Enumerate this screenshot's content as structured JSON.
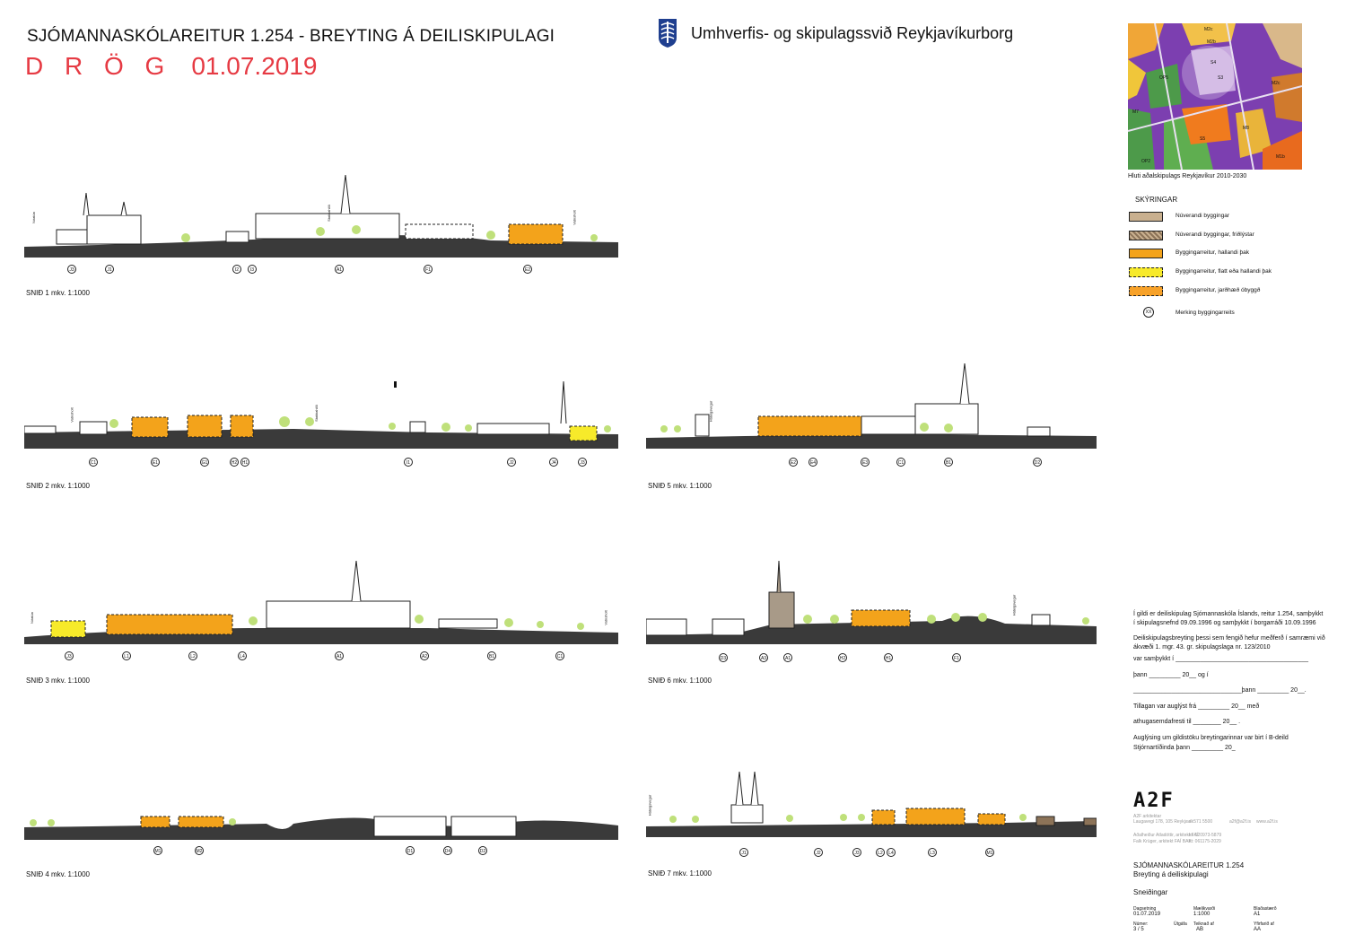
{
  "header": {
    "title": "SJÓMANNASKÓLAREITUR  1.254 - BREYTING Á DEILISKIPULAGI",
    "draft_word": "D R Ö G",
    "draft_date": "01.07.2019",
    "org_name": "Umhverfis- og skipulagssvið Reykjavíkurborg"
  },
  "map": {
    "caption": "Hluti aðalskipulags Reykjavíkur 2010-2030",
    "labels": [
      "M2c",
      "M2b",
      "S4",
      "OP5",
      "M7",
      "M2c",
      "S3",
      "S5",
      "M8",
      "M1b",
      "OP2"
    ]
  },
  "legend": {
    "title": "SKÝRINGAR",
    "items": [
      {
        "label": "Núverandi byggingar",
        "color": "#c9b08f"
      },
      {
        "label": "Núverandi byggingar, friðlýstar",
        "color": "#8c7358"
      },
      {
        "label": "Byggingarreitur, hallandi þak",
        "color": "#f3a31b"
      },
      {
        "label": "Byggingarreitur, flatt eða hallandi þak",
        "color": "#f7ea2a"
      },
      {
        "label": "Byggingarreitur, jarðhæð óbyggð",
        "color": "#f7a128"
      }
    ],
    "marker_symbol": "XX",
    "marker_label": "Merking byggingarreits"
  },
  "sections": [
    {
      "label": "SNIÐ 1 mkv. 1:1000",
      "refs": [
        "J3",
        "J1",
        "I2",
        "I3",
        "A1",
        "F1",
        "E2"
      ]
    },
    {
      "label": "SNIÐ 2 mkv. 1:1000",
      "refs": [
        "C1",
        "E1",
        "G1",
        "H2",
        "H1",
        "I1",
        "J2",
        "J4",
        "J3"
      ]
    },
    {
      "label": "SNIÐ 3 mkv. 1:1000",
      "refs": [
        "J3",
        "L1",
        "L2",
        "L4",
        "A1",
        "A2",
        "B1",
        "C1"
      ]
    },
    {
      "label": "SNIÐ 4 mkv. 1:1000",
      "refs": [
        "M1",
        "M2",
        "D1",
        "D4",
        "D2"
      ]
    },
    {
      "label": "SNIÐ 5 mkv. 1:1000",
      "refs": [
        "E2",
        "E4",
        "E3",
        "C1",
        "B1",
        "D2"
      ]
    },
    {
      "label": "SNIÐ 6 mkv. 1:1000",
      "refs": [
        "D3",
        "A3",
        "A1",
        "H2",
        "H1",
        "F1"
      ]
    },
    {
      "label": "SNIÐ 7 mkv. 1:1000",
      "refs": [
        "J1",
        "J2",
        "J3",
        "L2",
        "L4",
        "L3",
        "M1"
      ]
    }
  ],
  "street_labels": [
    "Nóatún",
    "Vatnsholt",
    "Stakkahlíð",
    "Vatnsholt",
    "Stakkahlíð",
    "Háteigsvegur",
    "Nóatún",
    "Vatnsholt",
    "Háteigsvegur",
    "Háteigsvegur"
  ],
  "notes": {
    "p1": "Í gildi er deiliskipulag Sjómannaskóla Íslands, reitur 1.254, samþykkt í skipulagsnefnd 09.09.1996 og samþykkt í borgarráði 10.09.1996",
    "p2": "Deiliskipulagsbreyting þessi sem fengið hefur meðferð í samræmi við ákvæði 1. mgr. 43. gr. skipulagslaga nr. 123/2010",
    "l1": "var samþykkt í ______________________________________",
    "l2": "þann _________ 20__ og í",
    "l3": "_______________________________þann _________       20__.",
    "l4": "Tillagan var auglýst frá _________ 20__    með",
    "l5": "athugasemdafresti til ________    20__ .",
    "l6": "Auglýsing um gildistöku breytingarinnar var birt í B-deild",
    "l7": "Stjórnartíðinda þann _________ 20_"
  },
  "firm": {
    "logo": "A2F",
    "addr1": "A2F arkitektar",
    "addr2": "Laugavegi 178, 105 Reykjavík",
    "phone": "s: 571 5500",
    "email": "a2f@a2f.is",
    "web": "www.a2f.is",
    "arch1": "Aðalheiður Atladóttir, arkitekt FAÍ",
    "arch1_id": "kt: 120973-5879",
    "arch2": "Falk Krüger, arkitekt FAÍ BAK",
    "arch2_id": "kt: 061175-2029"
  },
  "project": {
    "name": "SJÓMANNASKÓLAREITUR 1.254",
    "subtitle": "Breyting á deiliskipulagi",
    "sheet": "Sneiðingar"
  },
  "meta": {
    "date_label": "Dagsetning",
    "date": "01.07.2019",
    "scale_label": "Mælikvarði",
    "scale": "1:1000",
    "size_label": "Blaðastærð",
    "size": "A1",
    "num_label": "Númer:",
    "num": "3 / 5",
    "issue_label": "Útgáfa",
    "drawn_label": "Teiknað af",
    "drawn": "AB",
    "checked_label": "Yfirfarið af",
    "checked": "AA"
  }
}
